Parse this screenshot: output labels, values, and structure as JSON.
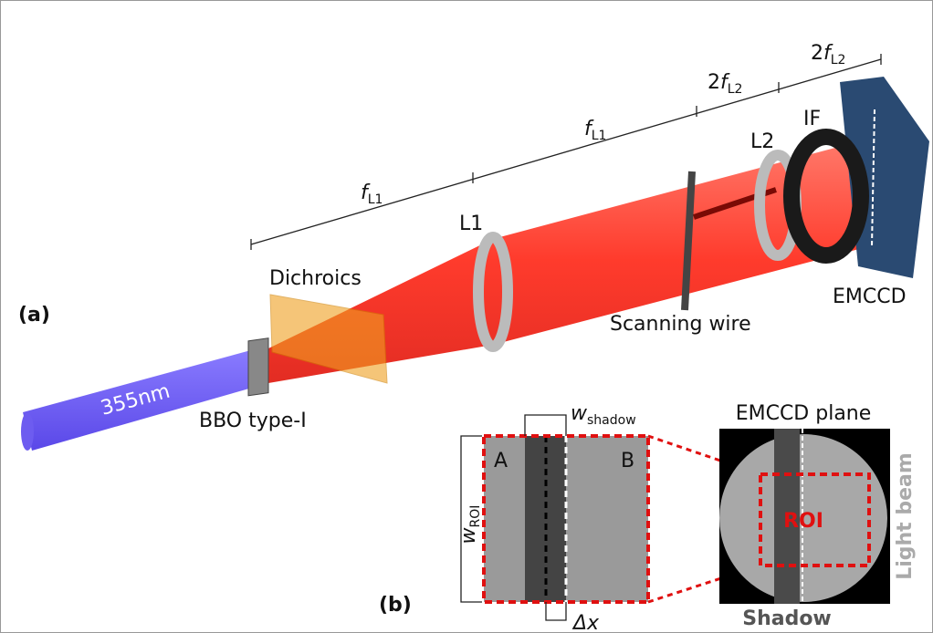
{
  "panel_a": {
    "label": "(a)",
    "beam_label": "355nm",
    "components": {
      "crystal": "BBO type-I",
      "dichroics": "Dichroics",
      "lens1": "L1",
      "lens2": "L2",
      "filter": "IF",
      "camera": "EMCCD",
      "wire": "Scanning wire"
    },
    "distances": [
      {
        "symbol": "f",
        "subscript": "L1"
      },
      {
        "symbol": "f",
        "subscript": "L1"
      },
      {
        "coefficient": "2",
        "symbol": "f",
        "subscript": "L2"
      },
      {
        "coefficient": "2",
        "symbol": "f",
        "subscript": "L2"
      }
    ]
  },
  "panel_b": {
    "label": "(b)",
    "zoom": {
      "region_a": "A",
      "region_b": "B",
      "shadow_width": {
        "symbol": "w",
        "subscript": "shadow"
      },
      "roi_width": {
        "symbol": "w",
        "subscript": "ROI"
      },
      "offset": "Δx"
    },
    "plane": {
      "title": "EMCCD plane",
      "roi": "ROI",
      "beam": "Light beam",
      "shadow": "Shadow"
    }
  }
}
